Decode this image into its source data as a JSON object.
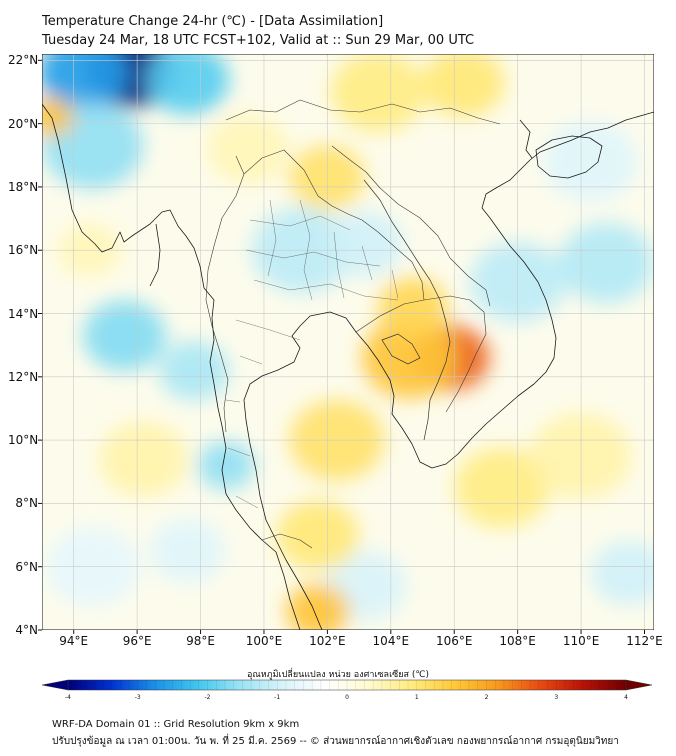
{
  "title": {
    "line1": "Temperature Change 24-hr (℃) - [Data Assimilation]",
    "line2": "Tuesday 24 Mar, 18 UTC FCST+102, Valid at :: Sun 29 Mar, 00 UTC"
  },
  "map": {
    "lat_labels": [
      "22°N",
      "20°N",
      "18°N",
      "16°N",
      "14°N",
      "12°N",
      "10°N",
      "8°N",
      "6°N",
      "4°N"
    ],
    "lon_labels": [
      "94°E",
      "96°E",
      "98°E",
      "100°E",
      "102°E",
      "104°E",
      "106°E",
      "108°E",
      "110°E",
      "112°E"
    ],
    "extent": {
      "lon_min": 93,
      "lon_max": 112.3,
      "lat_min": 4,
      "lat_max": 22.2
    }
  },
  "colorbar": {
    "label": "อุณหภูมิเปลี่ยนแปลง หน่วย องศาเซลเซียส (℃)",
    "ticks": [
      "-4",
      "-3",
      "-2",
      "-1",
      "0",
      "1",
      "2",
      "3",
      "4"
    ],
    "min": -4,
    "max": 4,
    "colors": [
      "#00007a",
      "#0030d0",
      "#1a8fe6",
      "#3fc6ee",
      "#9be3f4",
      "#d8f3fa",
      "#ffffff",
      "#fffad0",
      "#ffec80",
      "#ffc93a",
      "#f79a1c",
      "#e84a12",
      "#b81208",
      "#6e0000"
    ]
  },
  "anomalies": [
    {
      "lon": 95.8,
      "lat": 21.7,
      "value": -4.0,
      "r": 1.4
    },
    {
      "lon": 94.3,
      "lat": 21.6,
      "value": -2.6,
      "r": 1.4
    },
    {
      "lon": 97.6,
      "lat": 21.4,
      "value": -2.0,
      "r": 1.3
    },
    {
      "lon": 94.6,
      "lat": 19.3,
      "value": -1.6,
      "r": 1.6
    },
    {
      "lon": 93.3,
      "lat": 20.2,
      "value": 1.6,
      "r": 0.7
    },
    {
      "lon": 95.6,
      "lat": 13.3,
      "value": -1.7,
      "r": 1.3
    },
    {
      "lon": 97.8,
      "lat": 12.2,
      "value": -1.4,
      "r": 1.1
    },
    {
      "lon": 98.8,
      "lat": 9.2,
      "value": -1.6,
      "r": 0.9
    },
    {
      "lon": 101.2,
      "lat": 16.0,
      "value": -1.2,
      "r": 1.6
    },
    {
      "lon": 103.2,
      "lat": 16.2,
      "value": -1.0,
      "r": 1.2
    },
    {
      "lon": 108.0,
      "lat": 15.0,
      "value": -1.2,
      "r": 1.5
    },
    {
      "lon": 110.8,
      "lat": 15.6,
      "value": -1.3,
      "r": 1.5
    },
    {
      "lon": 110.3,
      "lat": 18.8,
      "value": -0.8,
      "r": 1.5
    },
    {
      "lon": 111.5,
      "lat": 5.8,
      "value": -1.0,
      "r": 1.2
    },
    {
      "lon": 103.2,
      "lat": 5.4,
      "value": -0.9,
      "r": 1.3
    },
    {
      "lon": 94.6,
      "lat": 6.0,
      "value": -0.7,
      "r": 1.5
    },
    {
      "lon": 97.6,
      "lat": 6.5,
      "value": -0.8,
      "r": 1.2
    },
    {
      "lon": 105.9,
      "lat": 12.6,
      "value": 2.6,
      "r": 1.2
    },
    {
      "lon": 104.6,
      "lat": 12.6,
      "value": 1.6,
      "r": 1.5
    },
    {
      "lon": 104.7,
      "lat": 14.2,
      "value": 1.3,
      "r": 1.1
    },
    {
      "lon": 102.3,
      "lat": 10.0,
      "value": 1.1,
      "r": 1.5
    },
    {
      "lon": 101.7,
      "lat": 7.0,
      "value": 1.0,
      "r": 1.3
    },
    {
      "lon": 101.7,
      "lat": 4.6,
      "value": 1.6,
      "r": 1.0
    },
    {
      "lon": 102.0,
      "lat": 18.3,
      "value": 1.1,
      "r": 1.2
    },
    {
      "lon": 103.6,
      "lat": 21.0,
      "value": 0.9,
      "r": 1.5
    },
    {
      "lon": 106.3,
      "lat": 21.3,
      "value": 1.0,
      "r": 1.3
    },
    {
      "lon": 99.5,
      "lat": 19.2,
      "value": 0.5,
      "r": 1.3
    },
    {
      "lon": 107.5,
      "lat": 8.5,
      "value": 0.9,
      "r": 1.5
    },
    {
      "lon": 110.0,
      "lat": 9.5,
      "value": 0.6,
      "r": 1.6
    },
    {
      "lon": 96.2,
      "lat": 9.4,
      "value": 0.6,
      "r": 1.4
    },
    {
      "lon": 94.5,
      "lat": 16.0,
      "value": 0.5,
      "r": 1.0
    }
  ],
  "footer": {
    "line1": "WRF-DA Domain 01 :: Grid Resolution 9km x 9km",
    "line2": "ปรับปรุงข้อมูล ณ เวลา 01:00น. วัน พ. ที่ 25 มี.ค. 2569 -- © ส่วนพยากรณ์อากาศเชิงตัวเลข กองพยากรณ์อากาศ กรมอุตุนิยมวิทยา"
  }
}
